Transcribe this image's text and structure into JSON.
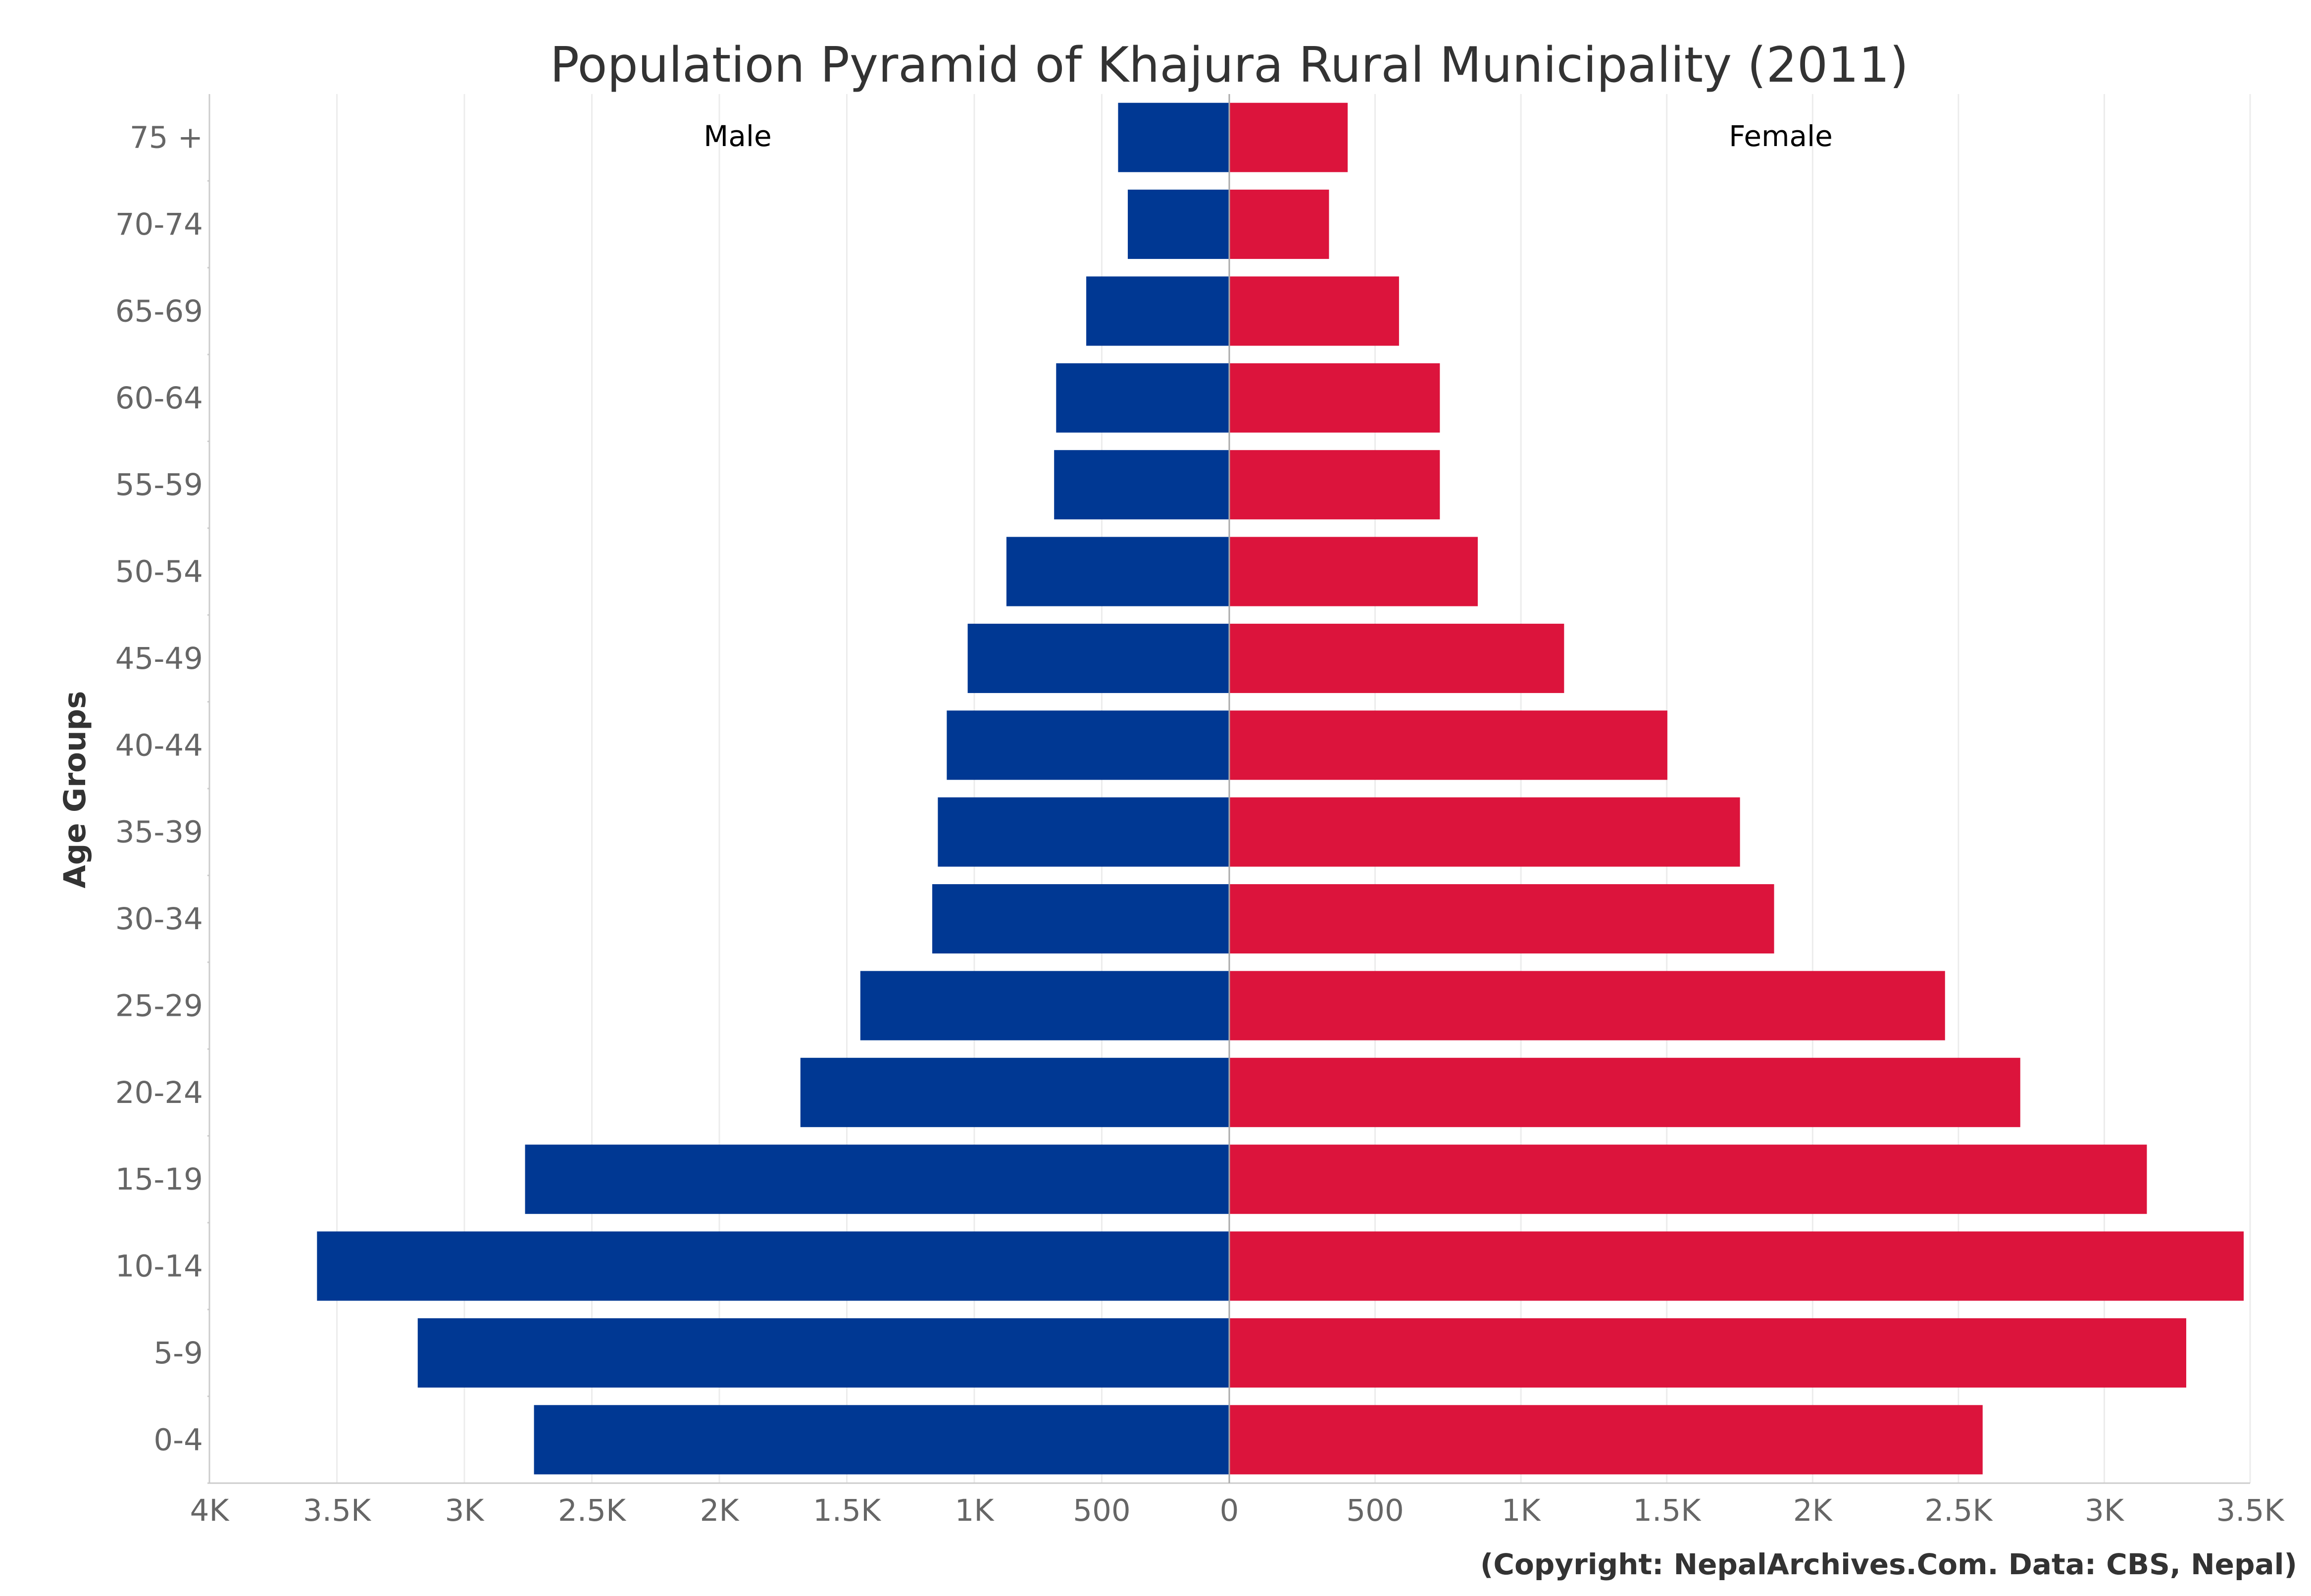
{
  "chart_data": {
    "type": "bar",
    "orientation": "horizontal",
    "title": "Population Pyramid of Khajura Rural Municipality (2011)",
    "ylabel": "Age Groups",
    "xlabel": "",
    "categories": [
      "0-4",
      "5-9",
      "10-14",
      "15-19",
      "20-24",
      "25-29",
      "30-34",
      "35-39",
      "40-44",
      "45-49",
      "50-54",
      "55-59",
      "60-64",
      "65-69",
      "70-74",
      "75 +"
    ],
    "series": [
      {
        "name": "Male",
        "color": "#003893",
        "values": [
          2727,
          3183,
          3578,
          2762,
          1682,
          1447,
          1165,
          1143,
          1108,
          1026,
          874,
          687,
          679,
          561,
          398,
          436
        ]
      },
      {
        "name": "Female",
        "color": "#DC143C",
        "values": [
          2583,
          3281,
          3478,
          3146,
          2712,
          2454,
          1868,
          1751,
          1502,
          1148,
          852,
          722,
          722,
          582,
          342,
          406
        ]
      }
    ],
    "left_ticks": [
      "4K",
      "3.5K",
      "3K",
      "2.5K",
      "2K",
      "1.5K",
      "1K",
      "500",
      "0"
    ],
    "right_ticks": [
      "0",
      "500",
      "1K",
      "1.5K",
      "2K",
      "2.5K",
      "3K",
      "3.5K"
    ],
    "left_xlim": [
      0,
      4000
    ],
    "right_xlim": [
      0,
      3500
    ],
    "grid": true,
    "credit": "(Copyright: NepalArchives.Com. Data: CBS, Nepal)"
  }
}
